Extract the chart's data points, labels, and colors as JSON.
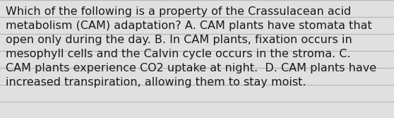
{
  "text": "Which of the following is a property of the Crassulacean acid\nmetabolism (CAM) adaptation? A. CAM plants have stomata that\nopen only during the day. B. In CAM plants, fixation occurs in\nmesophyll cells and the Calvin cycle occurs in the stroma. C.\nCAM plants experience CO2 uptake at night.  D. CAM plants have\nincreased transpiration, allowing them to stay moist.",
  "background_color": "#e0e0e0",
  "text_color": "#1a1a1a",
  "font_size": 11.5,
  "line_color": "#b8b8b8",
  "figwidth": 5.58,
  "figheight": 1.67,
  "dpi": 100
}
